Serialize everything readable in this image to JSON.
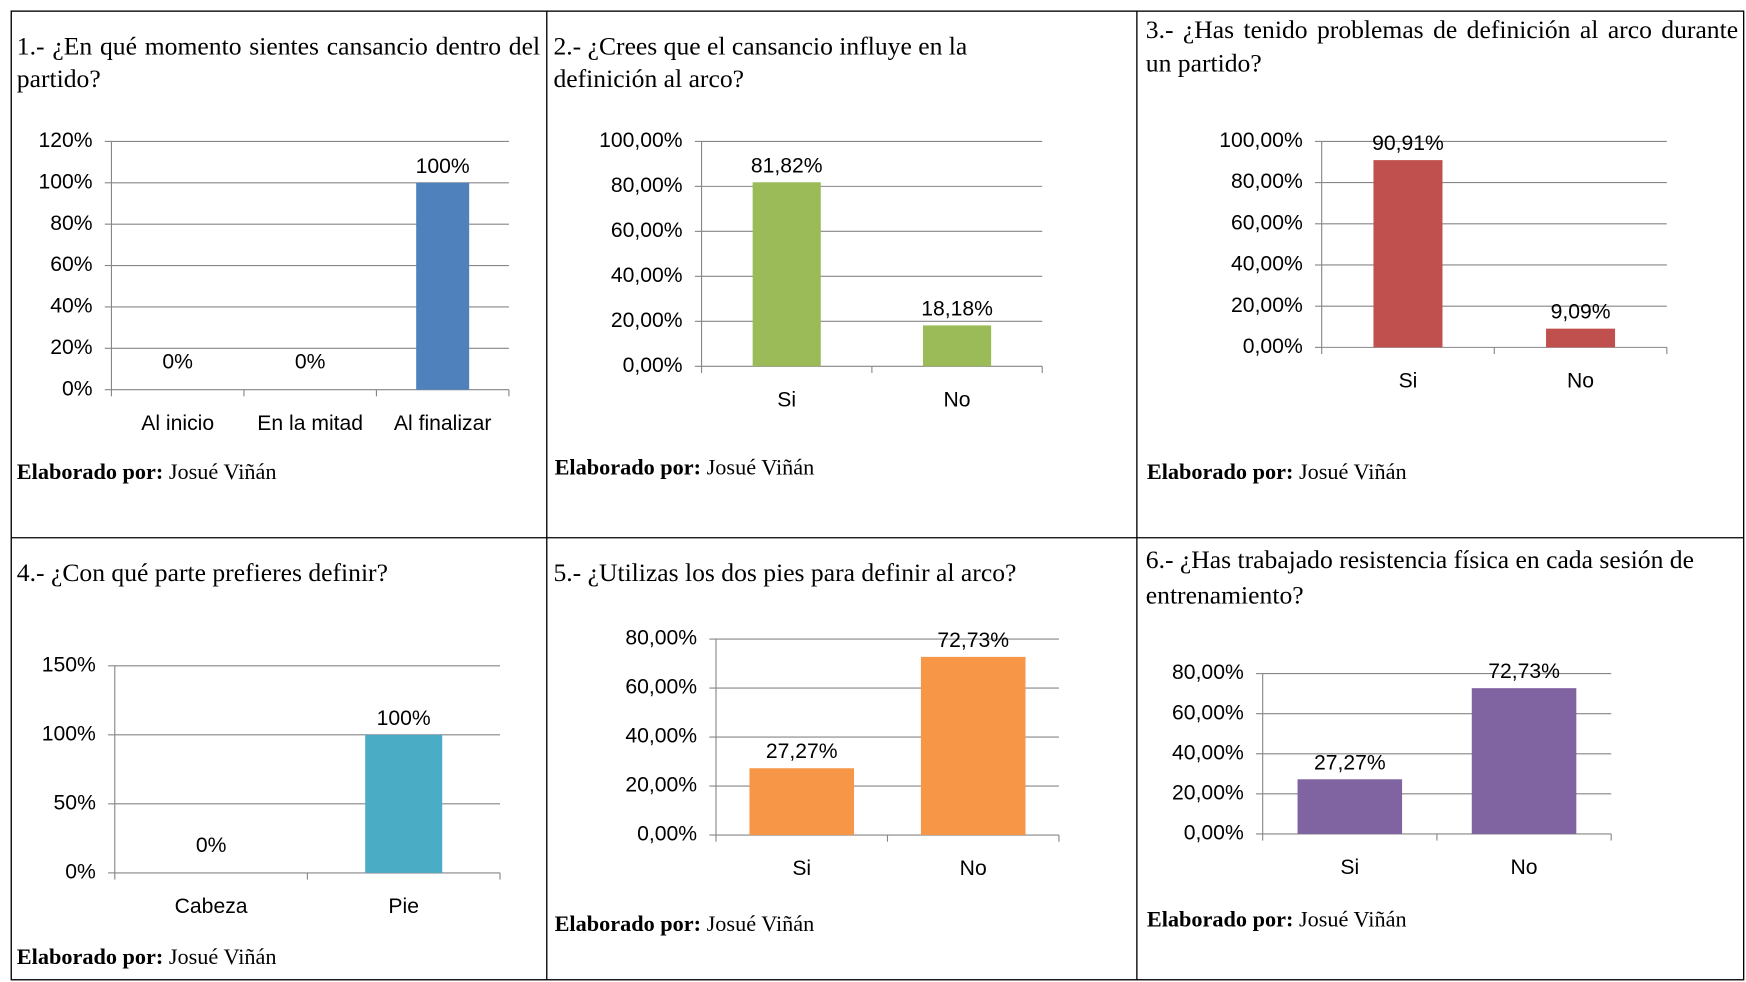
{
  "chart_data": [
    {
      "type": "bar",
      "title": "1.- ¿En qué momento sientes cansancio dentro del partido?",
      "categories": [
        "Al inicio",
        "En la mitad",
        "Al finalizar"
      ],
      "values": [
        0,
        0,
        100
      ],
      "value_labels": [
        "0%",
        "0%",
        "100%"
      ],
      "color": "#4f81bd",
      "ylim": [
        0,
        120
      ],
      "yticks": [
        {
          "value": 0,
          "label": "0%"
        },
        {
          "value": 20,
          "label": "20%"
        },
        {
          "value": 40,
          "label": "40%"
        },
        {
          "value": 60,
          "label": "60%"
        },
        {
          "value": 80,
          "label": "80%"
        },
        {
          "value": 100,
          "label": "100%"
        },
        {
          "value": 120,
          "label": "120%"
        }
      ],
      "grid": true,
      "credit_label": "Elaborado por:",
      "credit_name": "Josué Viñán"
    },
    {
      "type": "bar",
      "title": "2.- ¿Crees que el cansancio influye en la definición al arco?",
      "categories": [
        "Si",
        "No"
      ],
      "values": [
        81.82,
        18.18
      ],
      "value_labels": [
        "81,82%",
        "18,18%"
      ],
      "color": "#9bbb59",
      "ylim": [
        0,
        100
      ],
      "yticks": [
        {
          "value": 0,
          "label": "0,00%"
        },
        {
          "value": 20,
          "label": "20,00%"
        },
        {
          "value": 40,
          "label": "40,00%"
        },
        {
          "value": 60,
          "label": "60,00%"
        },
        {
          "value": 80,
          "label": "80,00%"
        },
        {
          "value": 100,
          "label": "100,00%"
        }
      ],
      "grid": true,
      "credit_label": "Elaborado por:",
      "credit_name": "Josué Viñán"
    },
    {
      "type": "bar",
      "title": "3.- ¿Has tenido problemas de definición al arco durante un partido?",
      "categories": [
        "Si",
        "No"
      ],
      "values": [
        90.91,
        9.09
      ],
      "value_labels": [
        "90,91%",
        "9,09%"
      ],
      "color": "#c0504d",
      "ylim": [
        0,
        100
      ],
      "yticks": [
        {
          "value": 0,
          "label": "0,00%"
        },
        {
          "value": 20,
          "label": "20,00%"
        },
        {
          "value": 40,
          "label": "40,00%"
        },
        {
          "value": 60,
          "label": "60,00%"
        },
        {
          "value": 80,
          "label": "80,00%"
        },
        {
          "value": 100,
          "label": "100,00%"
        }
      ],
      "grid": true,
      "credit_label": "Elaborado por:",
      "credit_name": "Josué Viñán"
    },
    {
      "type": "bar",
      "title": "4.- ¿Con qué parte prefieres definir?",
      "categories": [
        "Cabeza",
        "Pie"
      ],
      "values": [
        0,
        100
      ],
      "value_labels": [
        "0%",
        "100%"
      ],
      "color": "#4bacc6",
      "ylim": [
        0,
        150
      ],
      "yticks": [
        {
          "value": 0,
          "label": "0%"
        },
        {
          "value": 50,
          "label": "50%"
        },
        {
          "value": 100,
          "label": "100%"
        },
        {
          "value": 150,
          "label": "150%"
        }
      ],
      "grid": true,
      "credit_label": "Elaborado por:",
      "credit_name": "Josué Viñán"
    },
    {
      "type": "bar",
      "title": "5.- ¿Utilizas los dos pies para definir al arco?",
      "categories": [
        "Si",
        "No"
      ],
      "values": [
        27.27,
        72.73
      ],
      "value_labels": [
        "27,27%",
        "72,73%"
      ],
      "color": "#f79646",
      "ylim": [
        0,
        80
      ],
      "yticks": [
        {
          "value": 0,
          "label": "0,00%"
        },
        {
          "value": 20,
          "label": "20,00%"
        },
        {
          "value": 40,
          "label": "40,00%"
        },
        {
          "value": 60,
          "label": "60,00%"
        },
        {
          "value": 80,
          "label": "80,00%"
        }
      ],
      "grid": true,
      "credit_label": "Elaborado por:",
      "credit_name": "Josué Viñán"
    },
    {
      "type": "bar",
      "title": "6.- ¿Has trabajado resistencia física en cada sesión de entrenamiento?",
      "categories": [
        "Si",
        "No"
      ],
      "values": [
        27.27,
        72.73
      ],
      "value_labels": [
        "27,27%",
        "72,73%"
      ],
      "color": "#8064a2",
      "ylim": [
        0,
        80
      ],
      "yticks": [
        {
          "value": 0,
          "label": "0,00%"
        },
        {
          "value": 20,
          "label": "20,00%"
        },
        {
          "value": 40,
          "label": "40,00%"
        },
        {
          "value": 60,
          "label": "60,00%"
        },
        {
          "value": 80,
          "label": "80,00%"
        }
      ],
      "grid": true,
      "credit_label": "Elaborado por:",
      "credit_name": "Josué Viñán"
    }
  ]
}
